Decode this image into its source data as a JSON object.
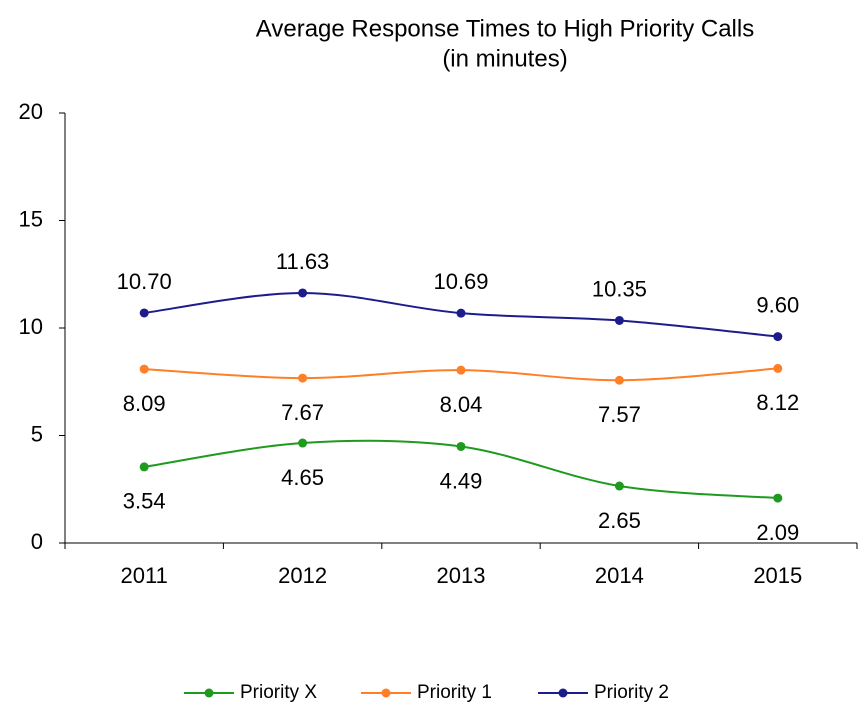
{
  "chart_data": {
    "type": "line",
    "title": "Average Response Times to High Priority Calls",
    "subtitle": "(in minutes)",
    "categories": [
      "2011",
      "2012",
      "2013",
      "2014",
      "2015"
    ],
    "series": [
      {
        "name": "Priority X",
        "color": "#1e9a1e",
        "values": [
          3.54,
          4.65,
          4.49,
          2.65,
          2.09
        ],
        "value_labels": [
          "3.54",
          "4.65",
          "4.49",
          "2.65",
          "2.09"
        ],
        "label_position": "below"
      },
      {
        "name": "Priority 1",
        "color": "#ff7f27",
        "values": [
          8.09,
          7.67,
          8.04,
          7.57,
          8.12
        ],
        "value_labels": [
          "8.09",
          "7.67",
          "8.04",
          "7.57",
          "8.12"
        ],
        "label_position": "below"
      },
      {
        "name": "Priority 2",
        "color": "#1c1c8c",
        "values": [
          10.7,
          11.63,
          10.69,
          10.35,
          9.6
        ],
        "value_labels": [
          "10.70",
          "11.63",
          "10.69",
          "10.35",
          "9.60"
        ],
        "label_position": "above"
      }
    ],
    "ylim": [
      0,
      20
    ],
    "yticks": [
      0,
      5,
      10,
      15,
      20
    ],
    "smooth": true,
    "legend": "bottom"
  }
}
